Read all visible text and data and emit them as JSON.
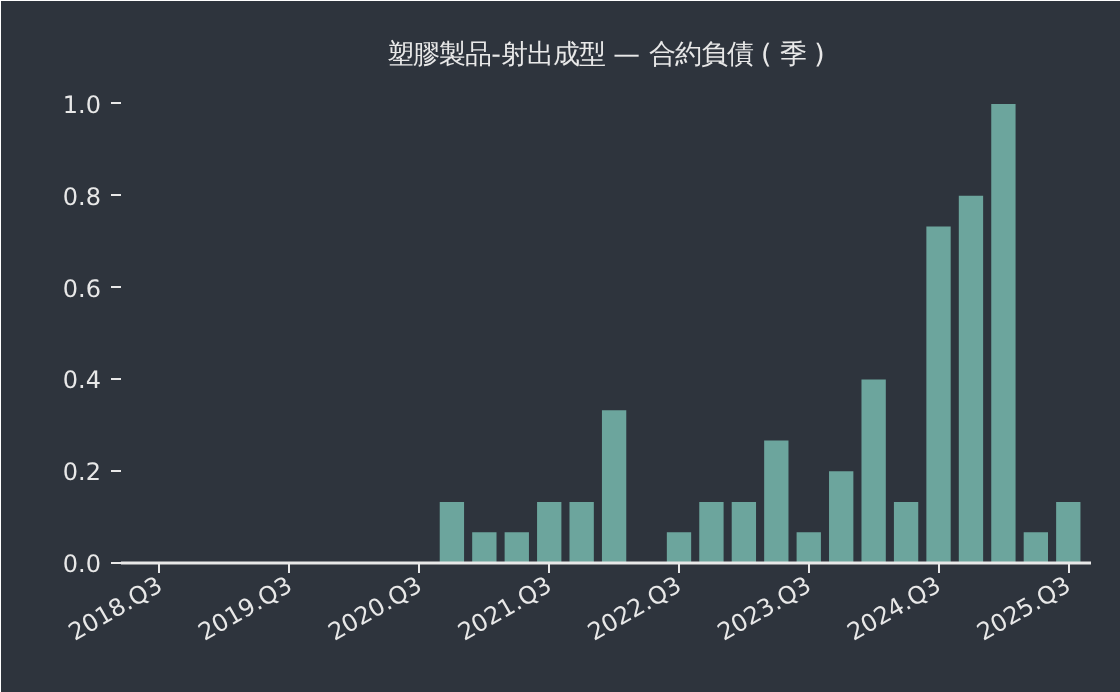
{
  "chart_data": {
    "type": "bar",
    "title": "塑膠製品-射出成型 — 合約負債 ( 季 )",
    "categories": [
      "2018.Q3",
      null,
      null,
      null,
      "2019.Q3",
      null,
      null,
      null,
      "2020.Q3",
      null,
      null,
      null,
      "2021.Q3",
      null,
      null,
      null,
      "2022.Q3",
      null,
      null,
      null,
      "2023.Q3",
      null,
      null,
      null,
      "2024.Q3",
      null,
      null,
      null,
      "2025.Q3"
    ],
    "values": [
      0,
      0,
      0,
      0,
      0,
      0,
      0,
      0,
      0,
      0.133,
      0.067,
      0.067,
      0.133,
      0.133,
      0.333,
      0,
      0.067,
      0.133,
      0.133,
      0.267,
      0.067,
      0.2,
      0.4,
      0.133,
      0.733,
      0.8,
      1.0,
      0.067,
      0.133
    ],
    "color": "#6ca59d",
    "ylim": [
      0,
      1.05
    ],
    "yticks": [
      {
        "value": 0,
        "label": "0.0"
      },
      {
        "value": 0.2,
        "label": "0.2"
      },
      {
        "value": 0.4,
        "label": "0.4"
      },
      {
        "value": 0.6,
        "label": "0.6"
      },
      {
        "value": 0.8,
        "label": "0.8"
      },
      {
        "value": 1.0,
        "label": "1.0"
      }
    ],
    "grid": false
  }
}
